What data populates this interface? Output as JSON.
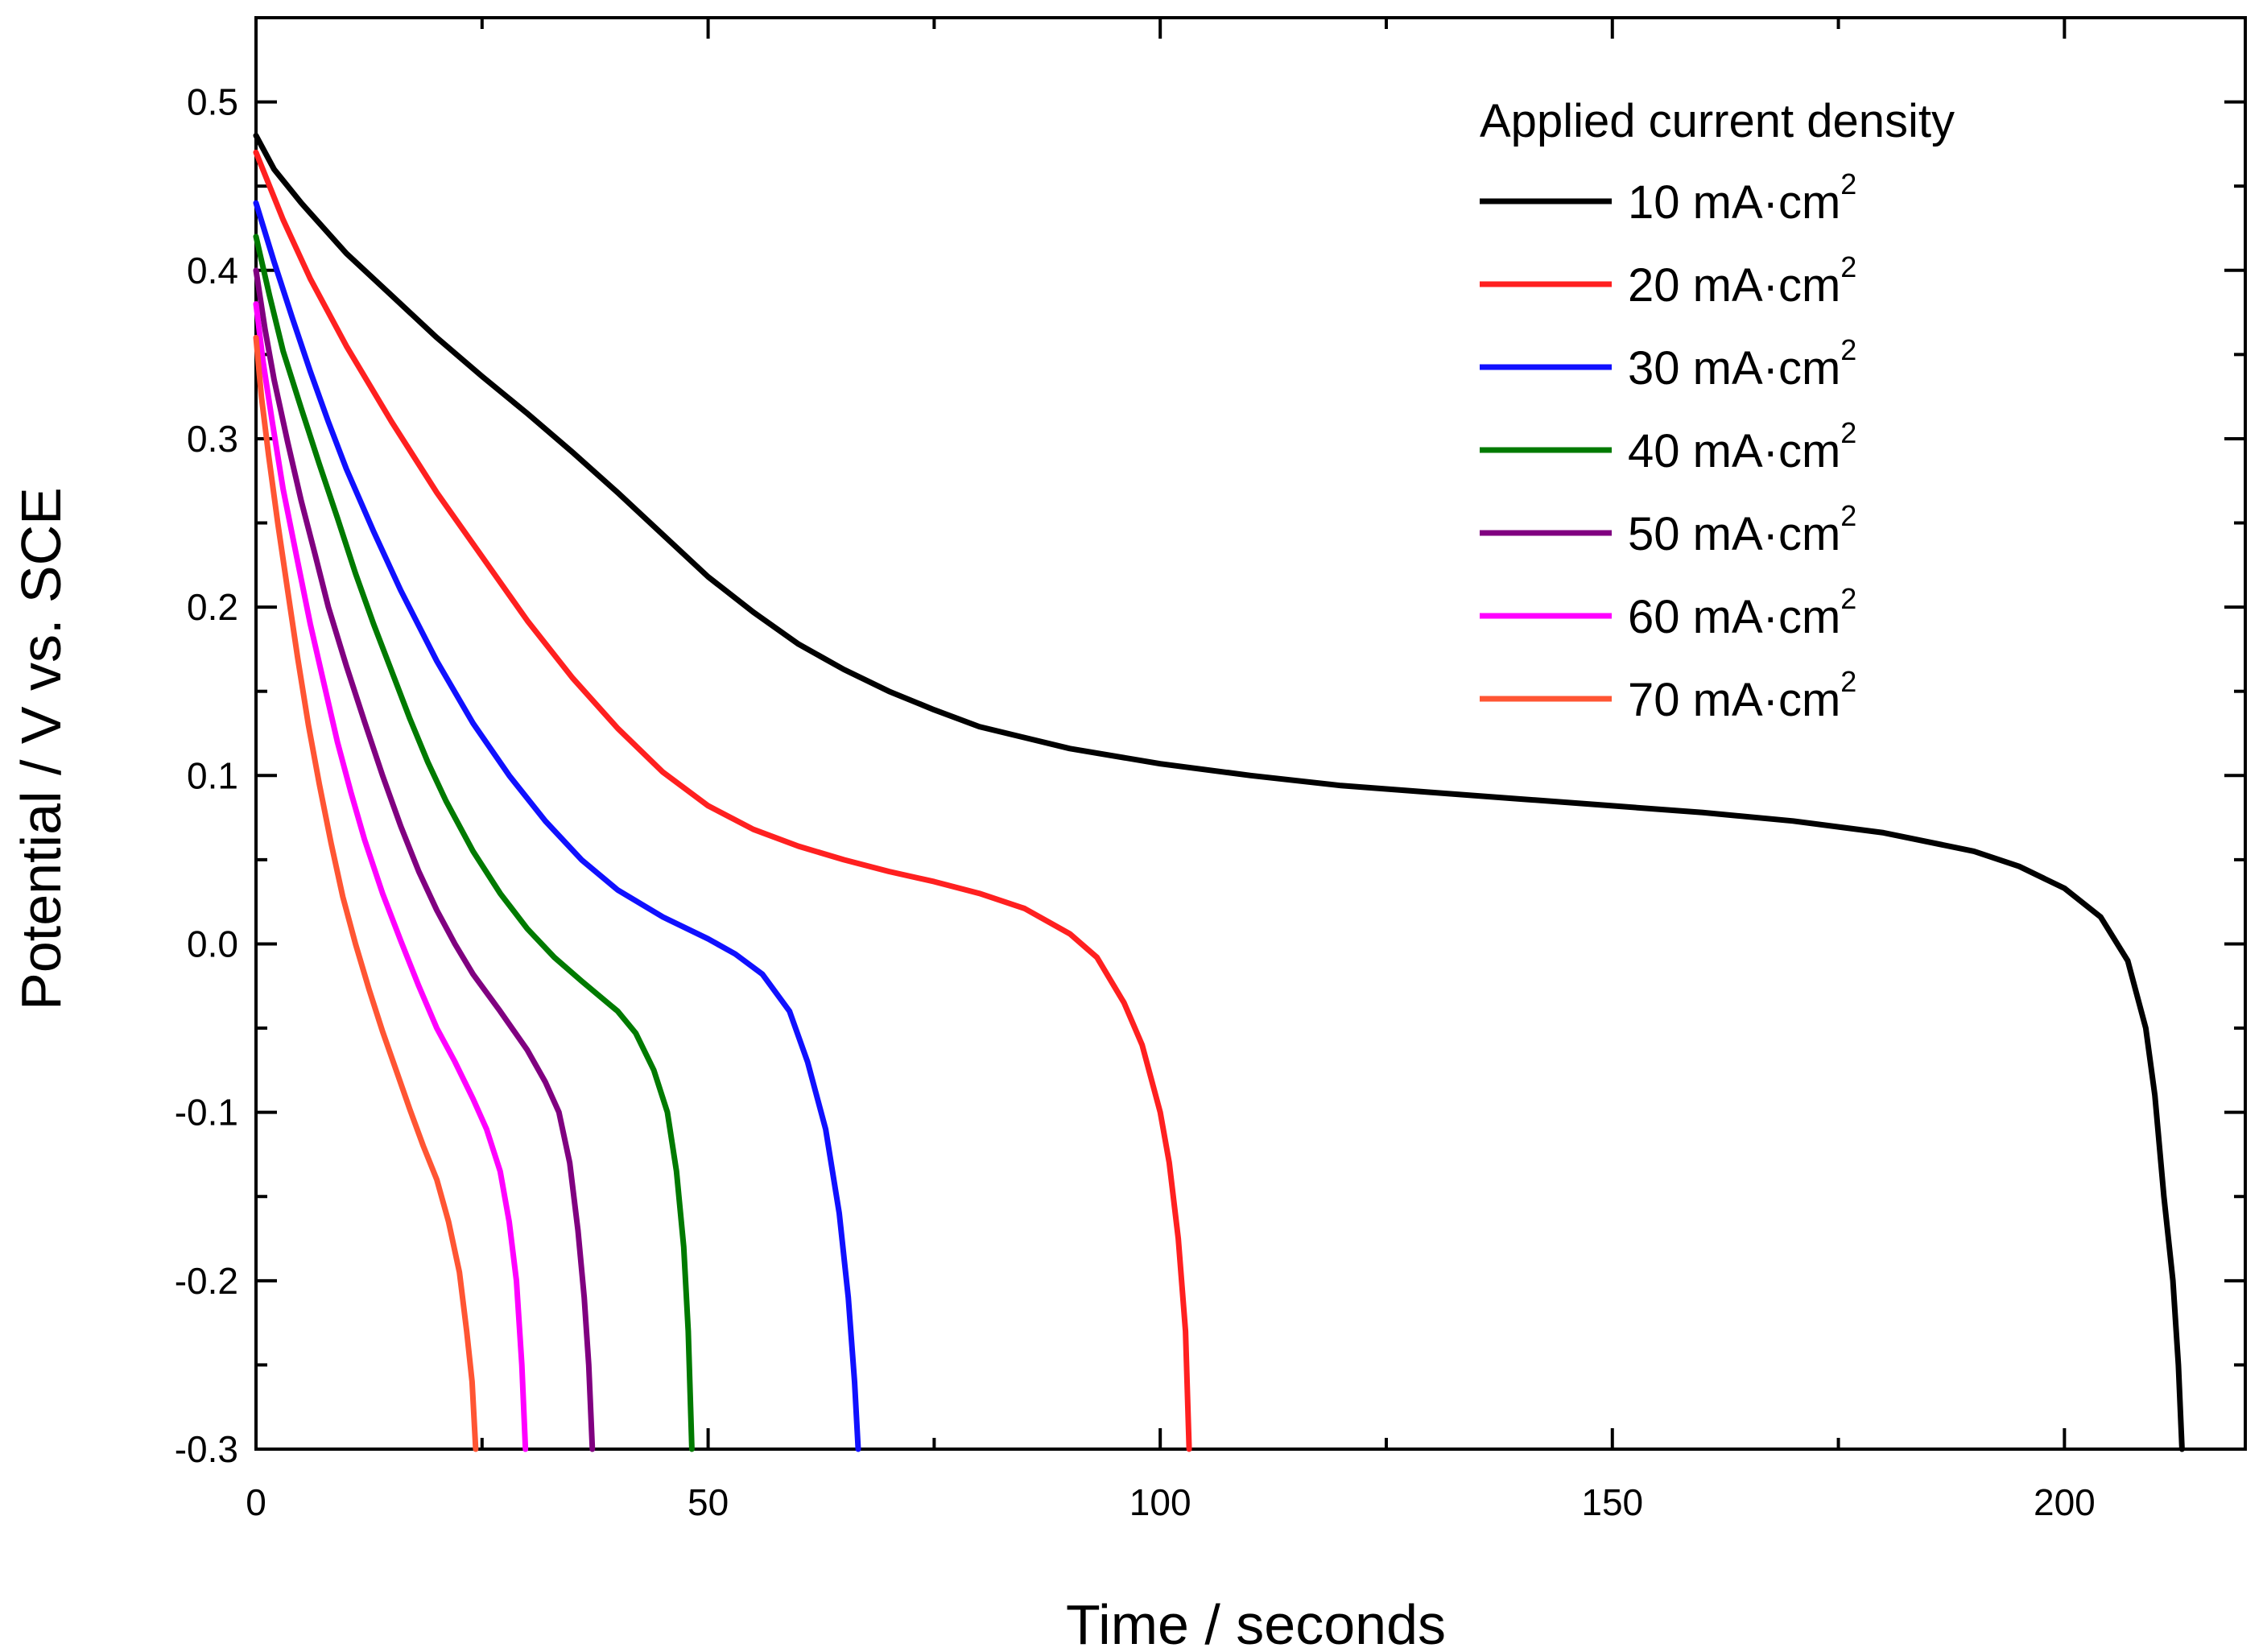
{
  "chart_data": {
    "type": "line",
    "title": "",
    "xlabel": "Time / seconds",
    "ylabel": "Potential / V vs. SCE",
    "xlim": [
      0,
      220
    ],
    "ylim": [
      -0.3,
      0.55
    ],
    "x_ticks": [
      {
        "value": 0,
        "label": "0"
      },
      {
        "value": 50,
        "label": "50"
      },
      {
        "value": 100,
        "label": "100"
      },
      {
        "value": 150,
        "label": "150"
      },
      {
        "value": 200,
        "label": "200"
      }
    ],
    "y_ticks": [
      {
        "value": -0.3,
        "label": "-0.3"
      },
      {
        "value": -0.2,
        "label": "-0.2"
      },
      {
        "value": -0.1,
        "label": "-0.1"
      },
      {
        "value": 0.0,
        "label": "0.0"
      },
      {
        "value": 0.1,
        "label": "0.1"
      },
      {
        "value": 0.2,
        "label": "0.2"
      },
      {
        "value": 0.3,
        "label": "0.3"
      },
      {
        "value": 0.4,
        "label": "0.4"
      },
      {
        "value": 0.5,
        "label": "0.5"
      }
    ],
    "legend": {
      "title": "Applied current density",
      "placement": "top-right"
    },
    "series": [
      {
        "name": "10 mA·cm",
        "superscript": "2",
        "color": "#000000",
        "points": [
          [
            0,
            0.48
          ],
          [
            2,
            0.46
          ],
          [
            5,
            0.44
          ],
          [
            10,
            0.41
          ],
          [
            15,
            0.385
          ],
          [
            20,
            0.36
          ],
          [
            25,
            0.337
          ],
          [
            30,
            0.315
          ],
          [
            35,
            0.292
          ],
          [
            40,
            0.268
          ],
          [
            45,
            0.243
          ],
          [
            50,
            0.218
          ],
          [
            55,
            0.197
          ],
          [
            60,
            0.178
          ],
          [
            65,
            0.163
          ],
          [
            70,
            0.15
          ],
          [
            75,
            0.139
          ],
          [
            80,
            0.129
          ],
          [
            90,
            0.116
          ],
          [
            100,
            0.107
          ],
          [
            110,
            0.1
          ],
          [
            120,
            0.094
          ],
          [
            130,
            0.09
          ],
          [
            140,
            0.086
          ],
          [
            150,
            0.082
          ],
          [
            160,
            0.078
          ],
          [
            170,
            0.073
          ],
          [
            180,
            0.066
          ],
          [
            190,
            0.055
          ],
          [
            195,
            0.046
          ],
          [
            200,
            0.033
          ],
          [
            204,
            0.016
          ],
          [
            207,
            -0.01
          ],
          [
            209,
            -0.05
          ],
          [
            210,
            -0.09
          ],
          [
            211,
            -0.15
          ],
          [
            212,
            -0.2
          ],
          [
            212.6,
            -0.25
          ],
          [
            213,
            -0.3
          ]
        ]
      },
      {
        "name": "20 mA·cm",
        "superscript": "2",
        "color": "#ff2020",
        "points": [
          [
            0,
            0.47
          ],
          [
            3,
            0.43
          ],
          [
            6,
            0.395
          ],
          [
            10,
            0.355
          ],
          [
            15,
            0.31
          ],
          [
            20,
            0.268
          ],
          [
            25,
            0.23
          ],
          [
            30,
            0.192
          ],
          [
            35,
            0.158
          ],
          [
            40,
            0.128
          ],
          [
            45,
            0.102
          ],
          [
            50,
            0.082
          ],
          [
            55,
            0.068
          ],
          [
            60,
            0.058
          ],
          [
            65,
            0.05
          ],
          [
            70,
            0.043
          ],
          [
            75,
            0.037
          ],
          [
            80,
            0.03
          ],
          [
            85,
            0.021
          ],
          [
            90,
            0.006
          ],
          [
            93,
            -0.008
          ],
          [
            96,
            -0.035
          ],
          [
            98,
            -0.06
          ],
          [
            100,
            -0.1
          ],
          [
            101,
            -0.13
          ],
          [
            102,
            -0.175
          ],
          [
            102.8,
            -0.23
          ],
          [
            103.2,
            -0.3
          ]
        ]
      },
      {
        "name": "30 mA·cm",
        "superscript": "2",
        "color": "#1010ff",
        "points": [
          [
            0,
            0.44
          ],
          [
            2,
            0.405
          ],
          [
            4,
            0.372
          ],
          [
            6,
            0.34
          ],
          [
            8,
            0.31
          ],
          [
            10,
            0.282
          ],
          [
            13,
            0.245
          ],
          [
            16,
            0.21
          ],
          [
            20,
            0.168
          ],
          [
            24,
            0.131
          ],
          [
            28,
            0.1
          ],
          [
            32,
            0.073
          ],
          [
            36,
            0.05
          ],
          [
            40,
            0.032
          ],
          [
            45,
            0.016
          ],
          [
            50,
            0.003
          ],
          [
            53,
            -0.006
          ],
          [
            56,
            -0.018
          ],
          [
            59,
            -0.04
          ],
          [
            61,
            -0.07
          ],
          [
            63,
            -0.11
          ],
          [
            64.5,
            -0.16
          ],
          [
            65.5,
            -0.21
          ],
          [
            66.2,
            -0.26
          ],
          [
            66.6,
            -0.3
          ]
        ]
      },
      {
        "name": "40 mA·cm",
        "superscript": "2",
        "color": "#007a00",
        "points": [
          [
            0,
            0.42
          ],
          [
            1.5,
            0.385
          ],
          [
            3,
            0.352
          ],
          [
            5,
            0.318
          ],
          [
            7,
            0.285
          ],
          [
            9,
            0.253
          ],
          [
            11,
            0.22
          ],
          [
            13,
            0.19
          ],
          [
            15,
            0.162
          ],
          [
            17,
            0.134
          ],
          [
            19,
            0.108
          ],
          [
            21,
            0.085
          ],
          [
            24,
            0.055
          ],
          [
            27,
            0.03
          ],
          [
            30,
            0.009
          ],
          [
            33,
            -0.008
          ],
          [
            36,
            -0.022
          ],
          [
            40,
            -0.04
          ],
          [
            42,
            -0.053
          ],
          [
            44,
            -0.075
          ],
          [
            45.5,
            -0.1
          ],
          [
            46.5,
            -0.135
          ],
          [
            47.3,
            -0.18
          ],
          [
            47.8,
            -0.23
          ],
          [
            48.2,
            -0.3
          ]
        ]
      },
      {
        "name": "50 mA·cm",
        "superscript": "2",
        "color": "#800080",
        "points": [
          [
            0,
            0.4
          ],
          [
            1,
            0.365
          ],
          [
            2,
            0.335
          ],
          [
            3.5,
            0.298
          ],
          [
            5,
            0.263
          ],
          [
            6.5,
            0.232
          ],
          [
            8,
            0.2
          ],
          [
            10,
            0.165
          ],
          [
            12,
            0.132
          ],
          [
            14,
            0.1
          ],
          [
            16,
            0.07
          ],
          [
            18,
            0.043
          ],
          [
            20,
            0.02
          ],
          [
            22,
            0.0
          ],
          [
            24,
            -0.018
          ],
          [
            27,
            -0.04
          ],
          [
            30,
            -0.063
          ],
          [
            32,
            -0.082
          ],
          [
            33.5,
            -0.1
          ],
          [
            34.7,
            -0.13
          ],
          [
            35.6,
            -0.17
          ],
          [
            36.3,
            -0.21
          ],
          [
            36.8,
            -0.25
          ],
          [
            37.2,
            -0.3
          ]
        ]
      },
      {
        "name": "60 mA·cm",
        "superscript": "2",
        "color": "#ff00ff",
        "points": [
          [
            0,
            0.38
          ],
          [
            0.8,
            0.345
          ],
          [
            1.8,
            0.31
          ],
          [
            3,
            0.27
          ],
          [
            4.5,
            0.23
          ],
          [
            6,
            0.19
          ],
          [
            7.5,
            0.155
          ],
          [
            9,
            0.12
          ],
          [
            10.5,
            0.09
          ],
          [
            12,
            0.062
          ],
          [
            14,
            0.03
          ],
          [
            16,
            0.002
          ],
          [
            18,
            -0.025
          ],
          [
            20,
            -0.05
          ],
          [
            22,
            -0.07
          ],
          [
            24,
            -0.092
          ],
          [
            25.5,
            -0.11
          ],
          [
            27,
            -0.135
          ],
          [
            28,
            -0.165
          ],
          [
            28.8,
            -0.2
          ],
          [
            29.4,
            -0.25
          ],
          [
            29.8,
            -0.3
          ]
        ]
      },
      {
        "name": "70 mA·cm",
        "superscript": "2",
        "color": "#ff5533",
        "points": [
          [
            0,
            0.36
          ],
          [
            0.6,
            0.325
          ],
          [
            1.4,
            0.29
          ],
          [
            2.4,
            0.25
          ],
          [
            3.5,
            0.21
          ],
          [
            4.6,
            0.17
          ],
          [
            5.8,
            0.13
          ],
          [
            7,
            0.095
          ],
          [
            8.3,
            0.06
          ],
          [
            9.6,
            0.028
          ],
          [
            11,
            0.0
          ],
          [
            12.5,
            -0.027
          ],
          [
            14,
            -0.052
          ],
          [
            15.5,
            -0.075
          ],
          [
            17,
            -0.098
          ],
          [
            18.5,
            -0.12
          ],
          [
            20,
            -0.14
          ],
          [
            21.3,
            -0.165
          ],
          [
            22.5,
            -0.195
          ],
          [
            23.3,
            -0.23
          ],
          [
            23.9,
            -0.26
          ],
          [
            24.3,
            -0.3
          ]
        ]
      }
    ]
  }
}
